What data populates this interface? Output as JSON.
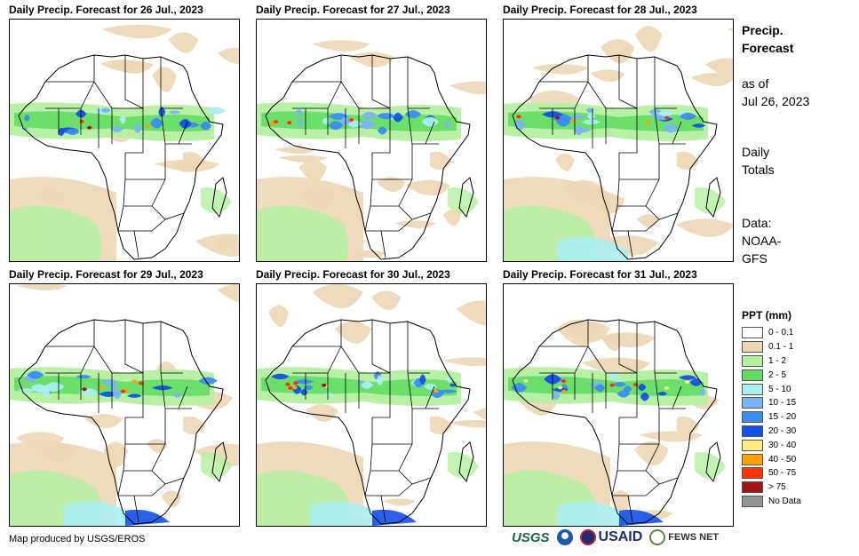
{
  "panels": [
    {
      "title": "Daily Precip. Forecast for 26 Jul., 2023"
    },
    {
      "title": "Daily Precip. Forecast for 27 Jul., 2023"
    },
    {
      "title": "Daily Precip. Forecast for 28 Jul., 2023"
    },
    {
      "title": "Daily Precip. Forecast for 29 Jul., 2023"
    },
    {
      "title": "Daily Precip. Forecast for 30 Jul., 2023"
    },
    {
      "title": "Daily Precip. Forecast for 31 Jul., 2023"
    }
  ],
  "side": {
    "title_line1": "Precip.",
    "title_line2": "Forecast",
    "asof_line1": "as of",
    "asof_line2": "Jul 26, 2023",
    "totals_line1": "Daily",
    "totals_line2": "Totals",
    "data_line1": "Data:",
    "data_line2": "NOAA-",
    "data_line3": "GFS"
  },
  "legend": {
    "title": "PPT (mm)",
    "items": [
      {
        "label": "0 - 0.1",
        "color": "#ffffff"
      },
      {
        "label": "0.1 - 1",
        "color": "#ecd7b5"
      },
      {
        "label": "1 - 2",
        "color": "#b4f0a0"
      },
      {
        "label": "2 - 5",
        "color": "#64dc64"
      },
      {
        "label": "5 - 10",
        "color": "#aaeef0"
      },
      {
        "label": "10 - 15",
        "color": "#78b4f0"
      },
      {
        "label": "15 - 20",
        "color": "#3c8cf0"
      },
      {
        "label": "20 - 30",
        "color": "#1450e6"
      },
      {
        "label": "30 - 40",
        "color": "#ffeb82"
      },
      {
        "label": "40 - 50",
        "color": "#ffa000"
      },
      {
        "label": "50 - 75",
        "color": "#ff3200"
      },
      {
        "label": "> 75",
        "color": "#a01414"
      },
      {
        "label": "No Data",
        "color": "#969696"
      }
    ]
  },
  "footer": {
    "credit": "Map produced by USGS/EROS"
  },
  "logos": {
    "usgs": "USGS",
    "noaa": "NOAA",
    "usaid": "USAID",
    "fews": "FEWS NET"
  }
}
